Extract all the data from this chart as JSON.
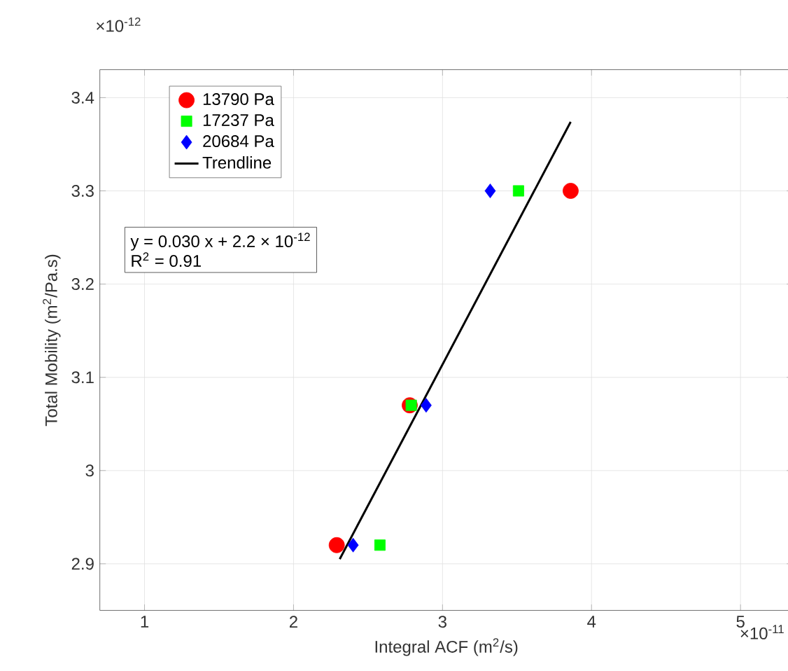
{
  "chart_data": {
    "type": "scatter",
    "xlabel": "Integral ACF (m$^{2}$/s)",
    "ylabel": "Total Mobility (m$^{2}$/Pa.s)",
    "series": [
      {
        "name": "13790 Pa",
        "color": "#ff0000",
        "marker": "circle",
        "x": [
          2.29,
          2.78,
          3.86
        ],
        "values": [
          2.92,
          3.07,
          3.3
        ]
      },
      {
        "name": "17237 Pa",
        "color": "#00ff00",
        "marker": "square",
        "x": [
          2.58,
          2.79,
          3.51
        ],
        "values": [
          2.92,
          3.07,
          3.3
        ]
      },
      {
        "name": "20684 Pa",
        "color": "#0000ff",
        "marker": "diamond",
        "x": [
          2.4,
          2.89,
          3.32
        ],
        "values": [
          2.92,
          3.07,
          3.3
        ]
      },
      {
        "name": "Trendline",
        "type": "line",
        "color": "#000000",
        "marker": "none",
        "line_style": "solid",
        "x": [
          2.31,
          3.86
        ],
        "values": [
          2.905,
          3.374
        ]
      }
    ],
    "xlim": [
      0.7,
      5.35
    ],
    "ylim": [
      2.85,
      3.43
    ],
    "xticks": [
      1,
      2,
      3,
      4,
      5
    ],
    "yticks": [
      2.9,
      3,
      3.1,
      3.2,
      3.3,
      3.4
    ],
    "grid": true,
    "legend": "top left",
    "annotations": [
      "y = 0.030 x + 2.2 × 10$^{-12}$",
      "R$^{2}$ = 0.91",
      "×10$^{-12}$",
      "×10$^{-11}$"
    ]
  }
}
